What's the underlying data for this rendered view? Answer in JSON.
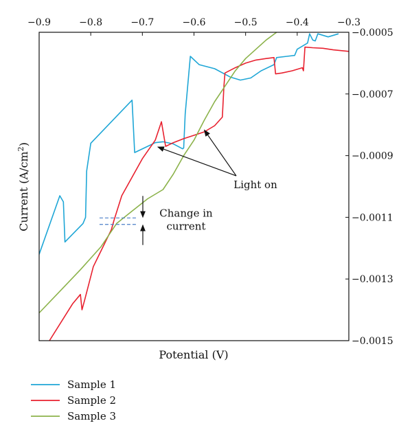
{
  "chart_data": {
    "type": "line",
    "xlabel": "Potential (V)",
    "ylabel_main": "Current (A/cm",
    "ylabel_sup": "2",
    "ylabel_close": ")",
    "xlim": [
      -0.9,
      -0.3
    ],
    "ylim": [
      -0.0015,
      -0.0005
    ],
    "x_ticks": [
      -0.9,
      -0.8,
      -0.7,
      -0.6,
      -0.5,
      -0.4,
      -0.3
    ],
    "x_tick_labels": [
      "−0.9",
      "−0.8",
      "−0.7",
      "−0.6",
      "−0.5",
      "−0.4",
      "−0.3"
    ],
    "x_axis_position": "top",
    "y_ticks": [
      -0.0005,
      -0.0007,
      -0.0009,
      -0.0011,
      -0.0013,
      -0.0015
    ],
    "y_tick_labels": [
      "−0.0005",
      "−0.0007",
      "−0.0009",
      "−0.0011",
      "−0.0013",
      "−0.0015"
    ],
    "y_axis_position": "right",
    "grid": false,
    "legend_position": "bottom-left",
    "series": [
      {
        "name": "Sample 1",
        "color": "#1ea6d6",
        "x": [
          -0.9,
          -0.86,
          -0.853,
          -0.85,
          -0.815,
          -0.81,
          -0.808,
          -0.8,
          -0.72,
          -0.715,
          -0.69,
          -0.675,
          -0.66,
          -0.64,
          -0.622,
          -0.62,
          -0.617,
          -0.607,
          -0.59,
          -0.56,
          -0.53,
          -0.51,
          -0.49,
          -0.47,
          -0.445,
          -0.44,
          -0.42,
          -0.405,
          -0.4,
          -0.38,
          -0.376,
          -0.37,
          -0.365,
          -0.36,
          -0.34,
          -0.32
        ],
        "y": [
          -0.00122,
          -0.00103,
          -0.00105,
          -0.00118,
          -0.00112,
          -0.0011,
          -0.00095,
          -0.00086,
          -0.00072,
          -0.00089,
          -0.00087,
          -0.000858,
          -0.000855,
          -0.000862,
          -0.000878,
          -0.000875,
          -0.000765,
          -0.000578,
          -0.000605,
          -0.000618,
          -0.000645,
          -0.000655,
          -0.000648,
          -0.000625,
          -0.000605,
          -0.000582,
          -0.000578,
          -0.000575,
          -0.000555,
          -0.000535,
          -0.000505,
          -0.000525,
          -0.000528,
          -0.000505,
          -0.000515,
          -0.000505
        ]
      },
      {
        "name": "Sample 2",
        "color": "#e8202e",
        "x": [
          -0.88,
          -0.85,
          -0.835,
          -0.82,
          -0.817,
          -0.812,
          -0.795,
          -0.76,
          -0.755,
          -0.74,
          -0.7,
          -0.675,
          -0.663,
          -0.655,
          -0.64,
          -0.62,
          -0.6,
          -0.58,
          -0.56,
          -0.545,
          -0.542,
          -0.54,
          -0.52,
          -0.5,
          -0.48,
          -0.46,
          -0.445,
          -0.442,
          -0.43,
          -0.41,
          -0.39,
          -0.388,
          -0.385,
          -0.37,
          -0.35,
          -0.33,
          -0.3
        ],
        "y": [
          -0.0015,
          -0.00142,
          -0.00138,
          -0.00135,
          -0.0014,
          -0.00137,
          -0.00126,
          -0.00114,
          -0.00111,
          -0.00103,
          -0.00091,
          -0.00085,
          -0.00079,
          -0.00087,
          -0.000858,
          -0.000845,
          -0.000834,
          -0.000823,
          -0.000803,
          -0.000775,
          -0.000675,
          -0.000632,
          -0.000615,
          -0.0006,
          -0.00059,
          -0.000585,
          -0.000582,
          -0.000635,
          -0.000632,
          -0.000625,
          -0.000615,
          -0.000625,
          -0.000548,
          -0.00055,
          -0.000552,
          -0.000557,
          -0.000562
        ]
      },
      {
        "name": "Sample 3",
        "color": "#8bb24a",
        "x": [
          -0.9,
          -0.86,
          -0.82,
          -0.78,
          -0.75,
          -0.72,
          -0.69,
          -0.66,
          -0.64,
          -0.62,
          -0.6,
          -0.58,
          -0.56,
          -0.54,
          -0.52,
          -0.5,
          -0.48,
          -0.46,
          -0.44,
          -0.42
        ],
        "y": [
          -0.00141,
          -0.00134,
          -0.00127,
          -0.001195,
          -0.00112,
          -0.00108,
          -0.00104,
          -0.00101,
          -0.00096,
          -0.0009,
          -0.00085,
          -0.000785,
          -0.000725,
          -0.000675,
          -0.000625,
          -0.000585,
          -0.000555,
          -0.000525,
          -0.0005,
          -0.000478
        ]
      }
    ],
    "annotations": {
      "light_on_label": "Light on",
      "change_label_line1": "Change in",
      "change_label_line2": "current",
      "light_on_arrow_targets": [
        {
          "x": -0.67,
          "y": -0.000872
        },
        {
          "x": -0.58,
          "y": -0.000817
        }
      ],
      "change_lines": {
        "x_start": -0.783,
        "x_end": -0.71,
        "y_upper": -0.001102,
        "y_lower": -0.001123,
        "color": "#4a7fc8"
      }
    }
  }
}
